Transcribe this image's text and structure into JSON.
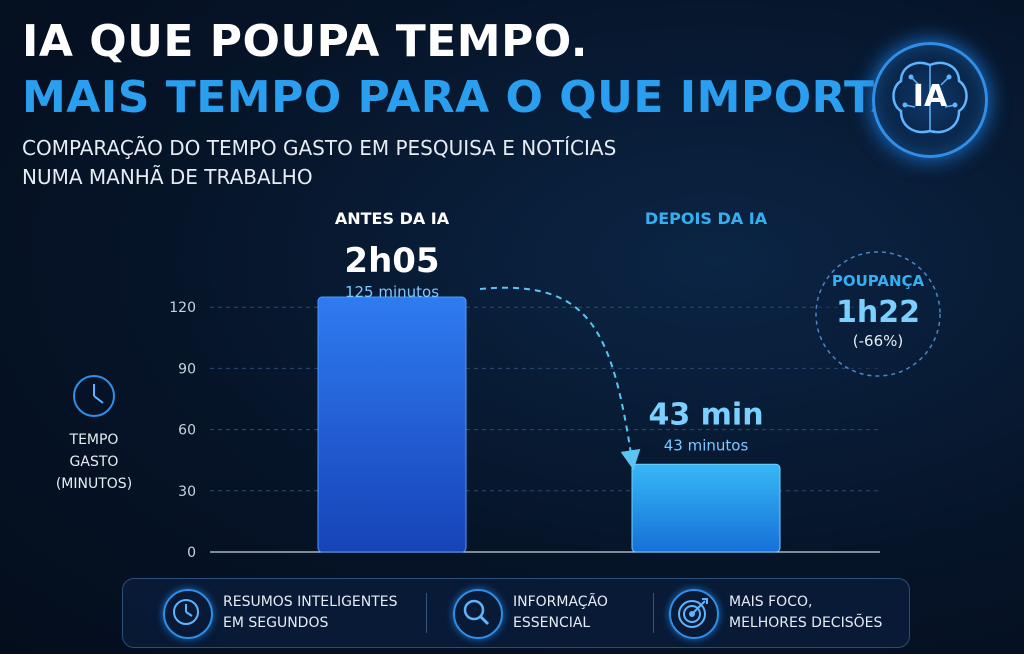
{
  "title_line1": "IA QUE POUPA TEMPO.",
  "title_line2": "MAIS TEMPO PARA O QUE IMPORTA.",
  "subtitle_line1": "COMPARAÇÃO DO TEMPO GASTO EM PESQUISA E NOTÍCIAS",
  "subtitle_line2": "NUMA MANHÃ DE TRABALHO",
  "badge_text": "IA",
  "chart_data": {
    "type": "bar",
    "categories": [
      "ANTES DA IA",
      "DEPOIS DA IA"
    ],
    "values": [
      125,
      43
    ],
    "value_labels": [
      "2h05",
      "43 min"
    ],
    "value_sublabels": [
      "125 minutos",
      "43 minutos"
    ],
    "ylabel": [
      "TEMPO",
      "GASTO",
      "(MINUTOS)"
    ],
    "yticks": [
      0,
      30,
      60,
      90,
      120
    ],
    "ylim": [
      0,
      125
    ],
    "grid": true,
    "savings": {
      "label": "POUPANÇA",
      "value": "1h22",
      "percent": "(-66%)"
    }
  },
  "features": [
    {
      "icon": "clock-icon",
      "line1": "RESUMOS INTELIGENTES",
      "line2": "EM SEGUNDOS"
    },
    {
      "icon": "magnifier-icon",
      "line1": "INFORMAÇÃO",
      "line2": "ESSENCIAL"
    },
    {
      "icon": "target-icon",
      "line1": "MAIS FOCO,",
      "line2": "MELHORES DECISÕES"
    }
  ],
  "colors": {
    "accent": "#2a9ff0",
    "bar_before": "#1f63e0",
    "bar_after": "#1aa6ee",
    "background": "#061428"
  }
}
